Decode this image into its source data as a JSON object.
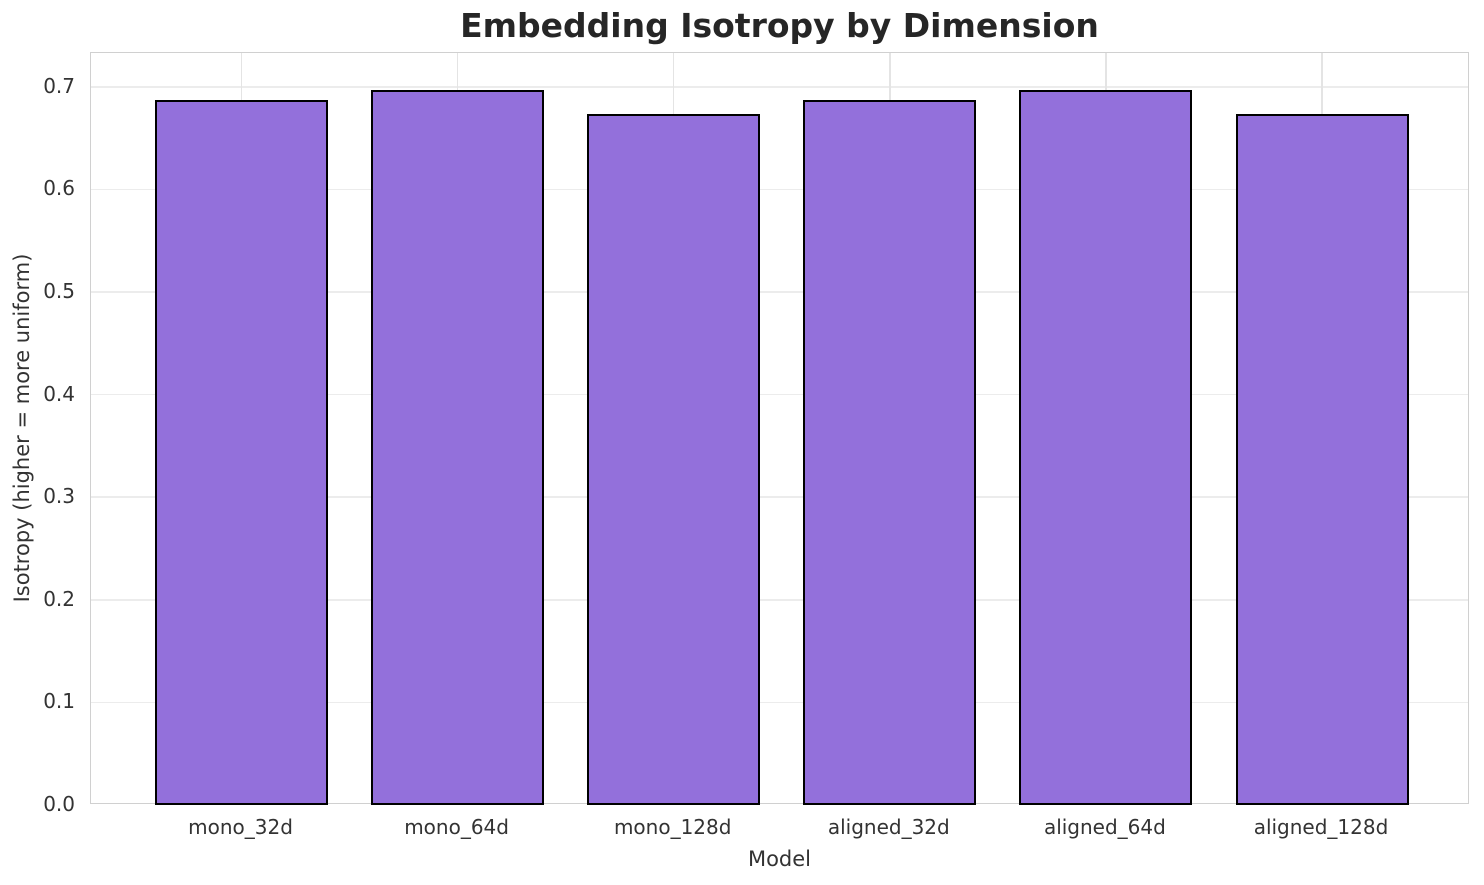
{
  "chart_data": {
    "type": "bar",
    "title": "Embedding Isotropy by Dimension",
    "xlabel": "Model",
    "ylabel": "Isotropy (higher = more uniform)",
    "categories": [
      "mono_32d",
      "mono_64d",
      "mono_128d",
      "aligned_32d",
      "aligned_64d",
      "aligned_128d"
    ],
    "values": [
      0.687,
      0.697,
      0.674,
      0.687,
      0.697,
      0.674
    ],
    "yticks": [
      0.0,
      0.1,
      0.2,
      0.3,
      0.4,
      0.5,
      0.6,
      0.7
    ],
    "ylim": [
      0,
      0.733
    ],
    "grid": true,
    "legend": null,
    "colors": {
      "bar_fill": "#9370DB",
      "bar_edge": "#000000",
      "grid_line": "#ececec",
      "spine": "#d0d0d0",
      "title_text": "#262626",
      "tick_text": "#333333",
      "background": "#ffffff"
    }
  }
}
